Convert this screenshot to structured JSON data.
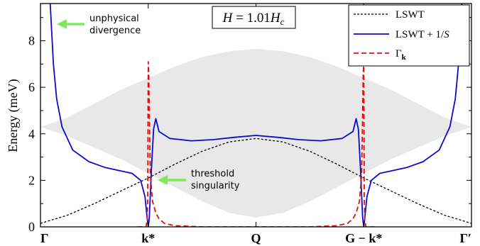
{
  "chart_data": {
    "type": "line",
    "ylabel": "Energy (meV)",
    "ylim": [
      0,
      9.6
    ],
    "y_ticks": [
      "0",
      "2",
      "4",
      "6",
      "8"
    ],
    "x_tick_labels": [
      "Γ",
      "k*",
      "Q",
      "G − k*",
      "Γ′"
    ],
    "x_tick_positions": [
      0,
      1,
      2,
      3,
      4
    ],
    "xlim": [
      0,
      4
    ],
    "field_label": "H = 1.01H_c",
    "legend": [
      {
        "name": "LSWT",
        "color": "#000000",
        "style": "dotted"
      },
      {
        "name": "LSWT + 1/S",
        "color": "#0a0ad2",
        "style": "solid"
      },
      {
        "name": "Γ_k",
        "color": "#e01010",
        "style": "dashed"
      }
    ],
    "legend_placement": "top-right",
    "annotations": [
      {
        "lines": [
          "unphysical",
          "divergence"
        ],
        "arrow_color": "#7fe85a"
      },
      {
        "lines": [
          "threshold",
          "singularity"
        ],
        "arrow_color": "#7fe85a"
      }
    ],
    "series": [
      {
        "name": "LSWT",
        "x": [
          0,
          0.25,
          0.5,
          0.75,
          1.0,
          1.25,
          1.5,
          1.75,
          2.0,
          2.25,
          2.5,
          2.75,
          3.0,
          3.25,
          3.5,
          3.75,
          4.0
        ],
        "y": [
          0.15,
          0.5,
          1.0,
          1.55,
          2.1,
          2.7,
          3.25,
          3.65,
          3.8,
          3.65,
          3.25,
          2.7,
          2.1,
          1.55,
          1.0,
          0.5,
          0.15
        ]
      },
      {
        "name": "LSWT + 1/S",
        "x": [
          0.09,
          0.12,
          0.15,
          0.2,
          0.3,
          0.45,
          0.6,
          0.75,
          0.85,
          0.93,
          0.97,
          0.99,
          1.0,
          1.01,
          1.03,
          1.05,
          1.07,
          1.1,
          1.2,
          1.4,
          1.6,
          1.8,
          2.0,
          2.2,
          2.4,
          2.6,
          2.8,
          2.9,
          2.93,
          2.95,
          2.97,
          2.99,
          3.0,
          3.01,
          3.03,
          3.07,
          3.15,
          3.25,
          3.4,
          3.55,
          3.7,
          3.8,
          3.85,
          3.88,
          3.91
        ],
        "y": [
          9.6,
          7.0,
          5.5,
          4.3,
          3.3,
          2.8,
          2.55,
          2.4,
          2.3,
          2.0,
          1.3,
          0.4,
          0.0,
          0.4,
          2.5,
          4.2,
          4.65,
          4.1,
          3.8,
          3.7,
          3.75,
          3.85,
          3.93,
          3.85,
          3.75,
          3.7,
          3.8,
          4.1,
          4.65,
          4.2,
          2.5,
          0.4,
          0.0,
          0.4,
          1.3,
          2.0,
          2.3,
          2.4,
          2.55,
          2.8,
          3.3,
          4.3,
          5.5,
          7.0,
          9.6
        ]
      },
      {
        "name": "Γ_k",
        "x": [
          0.9,
          0.95,
          0.98,
          0.99,
          0.995,
          1.0,
          1.005,
          1.01,
          1.02,
          1.04,
          1.07,
          1.1,
          1.15,
          1.25,
          1.5,
          2.0,
          2.5,
          2.75,
          2.85,
          2.9,
          2.93,
          2.96,
          2.98,
          2.99,
          2.995,
          3.0,
          3.005,
          3.01,
          3.02,
          3.05,
          3.1
        ],
        "y": [
          0,
          0,
          0,
          0.3,
          1.2,
          7.1,
          6.6,
          4.8,
          2.2,
          1.1,
          0.6,
          0.35,
          0.15,
          0.05,
          0,
          0,
          0,
          0.05,
          0.15,
          0.35,
          0.6,
          1.1,
          2.2,
          4.8,
          6.6,
          7.1,
          1.2,
          0.3,
          0,
          0,
          0
        ]
      }
    ],
    "continuum_band": {
      "x": [
        0,
        0.25,
        0.5,
        0.75,
        1.0,
        1.25,
        1.5,
        1.75,
        2.0,
        2.25,
        2.5,
        2.75,
        3.0,
        3.25,
        3.5,
        3.75,
        4.0
      ],
      "upper": [
        4.3,
        4.7,
        5.3,
        5.9,
        6.4,
        6.9,
        7.3,
        7.55,
        7.65,
        7.55,
        7.3,
        6.9,
        6.4,
        5.9,
        5.3,
        4.7,
        4.3
      ],
      "lower": [
        4.3,
        3.9,
        3.4,
        2.9,
        2.3,
        1.7,
        1.1,
        0.6,
        0.4,
        0.6,
        1.1,
        1.7,
        2.3,
        2.9,
        3.4,
        3.9,
        4.3
      ],
      "color": "#e8e8e8"
    }
  }
}
